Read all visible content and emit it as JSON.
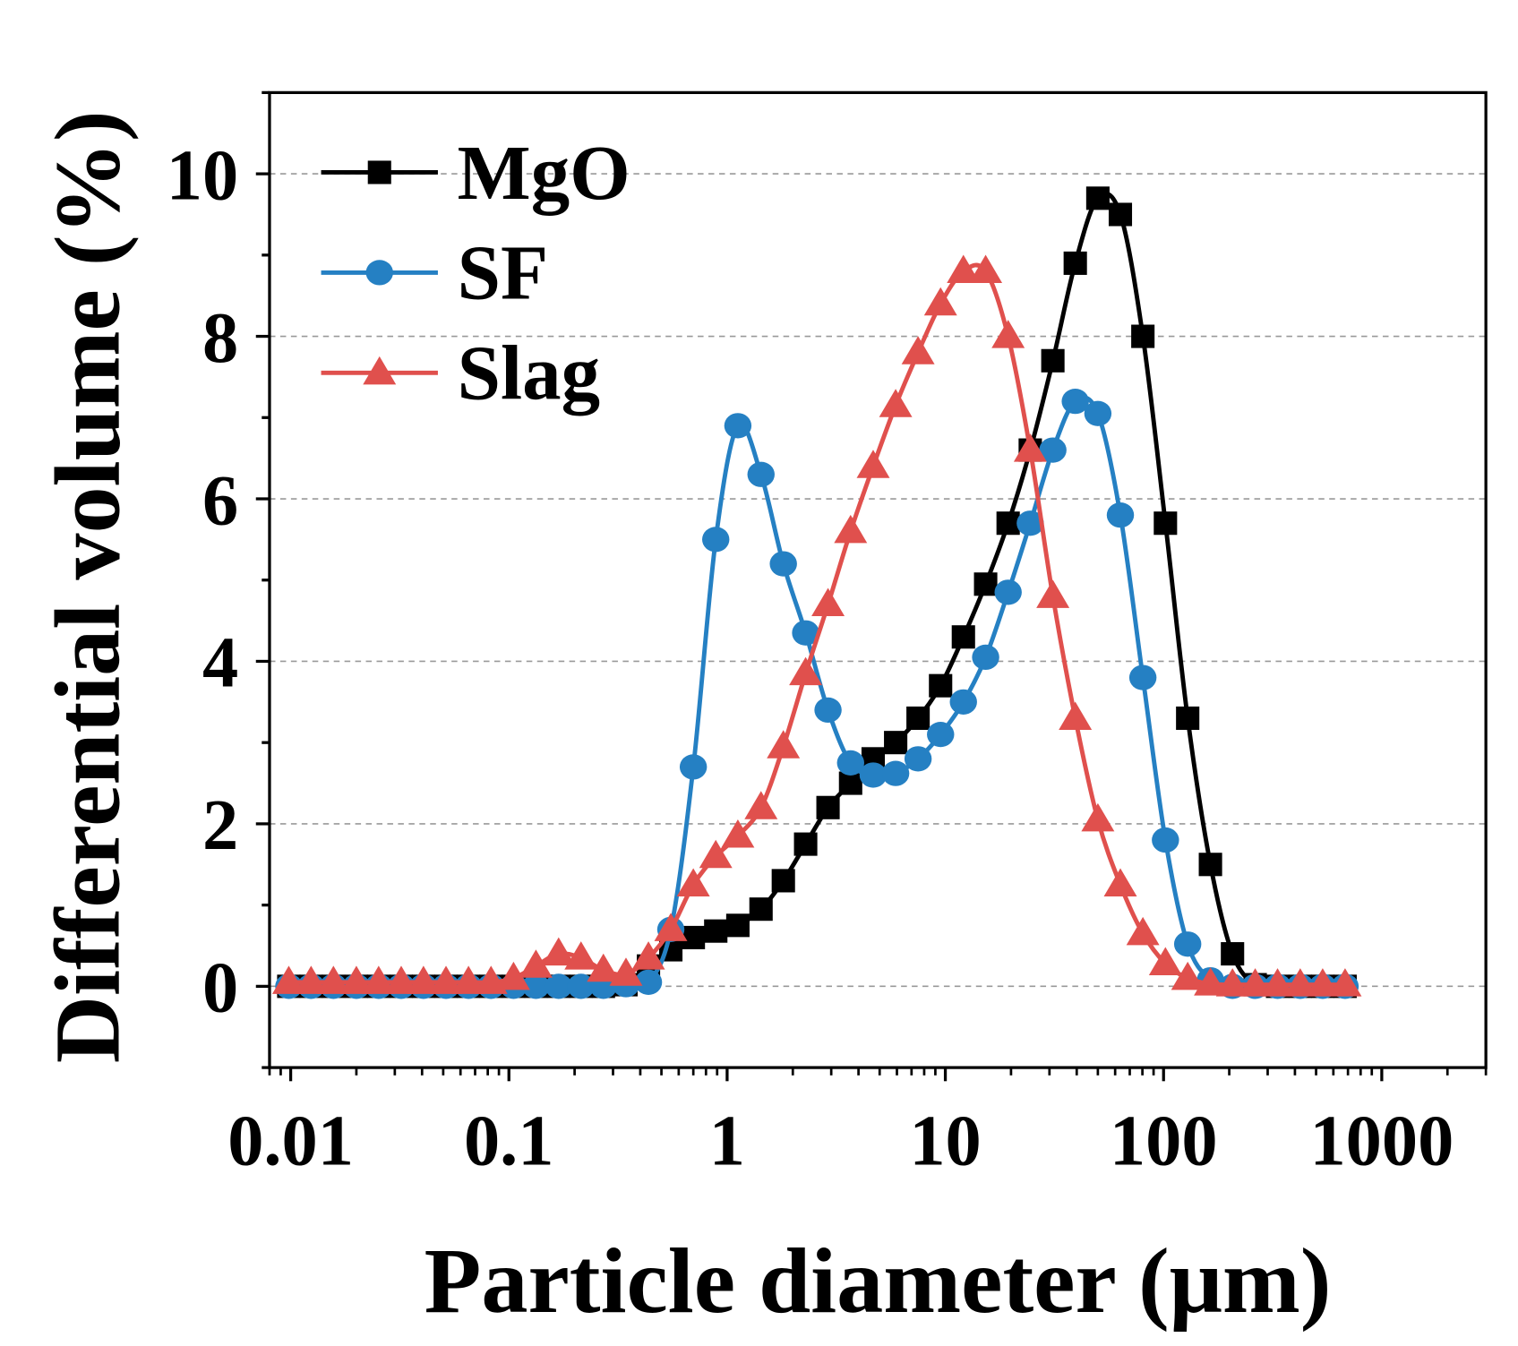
{
  "chart_data": {
    "type": "line",
    "title": "",
    "xlabel": "Particle diameter (μm)",
    "ylabel": "Differential volume (%)",
    "xscale": "log",
    "xlim": [
      0.008,
      3000
    ],
    "ylim": [
      -1,
      11
    ],
    "xticks": [
      0.01,
      0.1,
      1,
      10,
      100,
      1000
    ],
    "xtick_labels": [
      "0.01",
      "0.1",
      "1",
      "10",
      "100",
      "1000"
    ],
    "yticks": [
      0,
      2,
      4,
      6,
      8,
      10
    ],
    "ytick_labels": [
      "0",
      "2",
      "4",
      "6",
      "8",
      "10"
    ],
    "grid": "horizontal dashed at major y ticks",
    "legend_position": "top-left",
    "x": [
      0.0098,
      0.0124,
      0.0157,
      0.02,
      0.0253,
      0.0321,
      0.0406,
      0.0515,
      0.0653,
      0.0828,
      0.105,
      0.133,
      0.169,
      0.214,
      0.271,
      0.344,
      0.436,
      0.552,
      0.7,
      0.887,
      1.12,
      1.43,
      1.81,
      2.29,
      2.9,
      3.68,
      4.67,
      5.92,
      7.5,
      9.51,
      12.1,
      15.3,
      19.4,
      24.5,
      31.1,
      39.4,
      50.0,
      63.4,
      80.4,
      102,
      129,
      164,
      207,
      263,
      333,
      423,
      536,
      679
    ],
    "series": [
      {
        "name": "MgO",
        "color": "#000000",
        "marker": "square",
        "values": [
          0,
          0,
          0,
          0,
          0,
          0,
          0,
          0,
          0,
          0,
          0,
          0,
          0,
          0,
          0,
          0.02,
          0.25,
          0.45,
          0.6,
          0.68,
          0.75,
          0.95,
          1.3,
          1.75,
          2.2,
          2.5,
          2.8,
          3.0,
          3.3,
          3.7,
          4.3,
          4.95,
          5.7,
          6.6,
          7.7,
          8.9,
          9.7,
          9.5,
          8.0,
          5.7,
          3.3,
          1.5,
          0.4,
          0.02,
          0,
          0,
          0,
          0
        ]
      },
      {
        "name": "SF",
        "color": "#2580c3",
        "marker": "circle",
        "values": [
          0,
          0,
          0,
          0,
          0,
          0,
          0,
          0,
          0,
          0,
          0,
          0,
          0,
          0,
          0,
          0.02,
          0.05,
          0.7,
          2.7,
          5.5,
          6.9,
          6.3,
          5.2,
          4.35,
          3.4,
          2.75,
          2.6,
          2.62,
          2.8,
          3.1,
          3.5,
          4.05,
          4.85,
          5.7,
          6.6,
          7.2,
          7.05,
          5.8,
          3.8,
          1.8,
          0.52,
          0.08,
          0,
          0,
          0,
          0,
          0,
          0
        ]
      },
      {
        "name": "Slag",
        "color": "#e0504d",
        "marker": "triangle",
        "values": [
          0.05,
          0.05,
          0.05,
          0.05,
          0.05,
          0.05,
          0.05,
          0.05,
          0.05,
          0.05,
          0.1,
          0.25,
          0.4,
          0.35,
          0.2,
          0.15,
          0.35,
          0.7,
          1.25,
          1.6,
          1.85,
          2.2,
          2.95,
          3.85,
          4.7,
          5.6,
          6.4,
          7.15,
          7.8,
          8.4,
          8.8,
          8.8,
          8.0,
          6.6,
          4.8,
          3.3,
          2.05,
          1.25,
          0.65,
          0.28,
          0.1,
          0.03,
          0.02,
          0.02,
          0.02,
          0.02,
          0.02,
          0.02
        ]
      }
    ]
  }
}
